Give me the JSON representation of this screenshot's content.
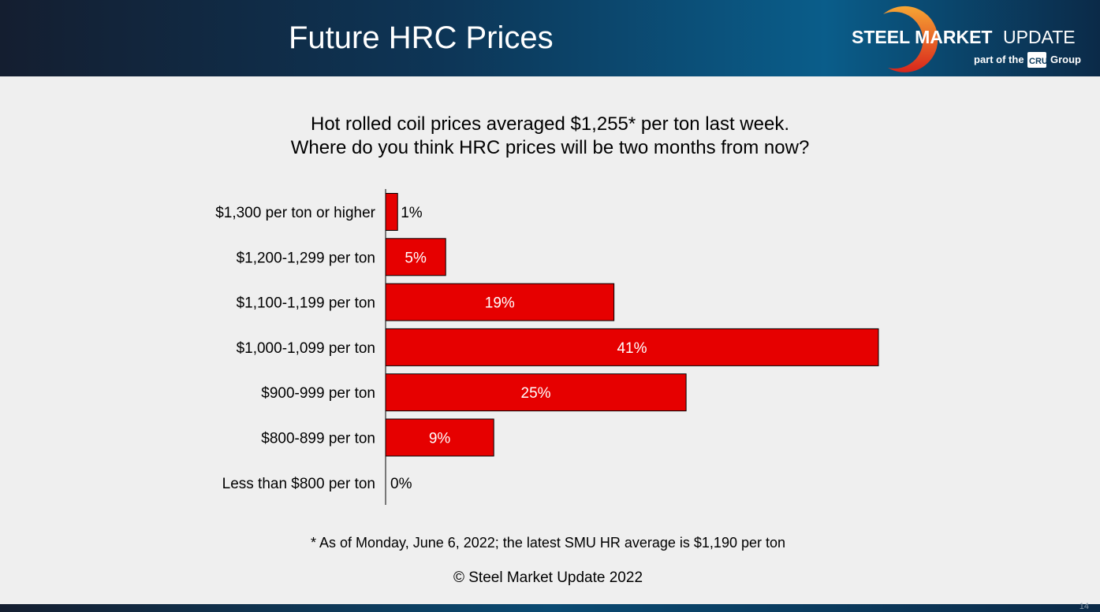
{
  "header": {
    "title": "Future HRC Prices",
    "logo_text": "STEEL MARKET UPDATE",
    "logo_sub": "part of the CRU Group"
  },
  "subtitle": [
    "Hot rolled coil prices averaged $1,255* per ton last week.",
    "Where do you think HRC prices will be two months from now?"
  ],
  "chart_data": {
    "type": "bar",
    "orientation": "horizontal",
    "categories": [
      "$1,300 per ton or higher",
      "$1,200-1,299 per ton",
      "$1,100-1,199 per ton",
      "$1,000-1,099 per ton",
      "$900-999 per ton",
      "$800-899 per ton",
      "Less than $800 per ton"
    ],
    "values": [
      1,
      5,
      19,
      41,
      25,
      9,
      0
    ],
    "data_labels": [
      "1%",
      "5%",
      "19%",
      "41%",
      "25%",
      "9%",
      "0%"
    ],
    "unit": "%",
    "grid": false,
    "legend": "none",
    "bar_color": "#e60000"
  },
  "footnote": "* As of Monday, June 6, 2022; the latest SMU HR average is $1,190 per ton",
  "copyright": "© Steel Market Update 2022",
  "page_number": "14"
}
